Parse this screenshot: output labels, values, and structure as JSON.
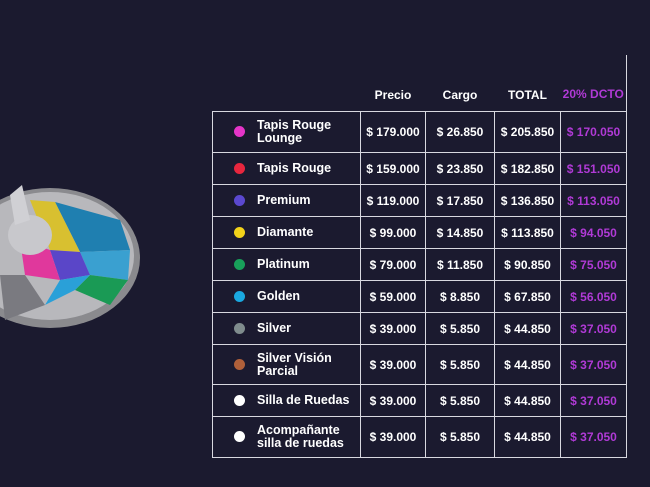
{
  "table": {
    "headers": [
      "Precio",
      "Cargo",
      "TOTAL",
      "20% DCTO"
    ],
    "rows": [
      {
        "dot": "#e535c8",
        "cells": [
          "Tapis Rouge Lounge",
          "$ 179.000",
          "$ 26.850",
          "$ 205.850",
          "$ 170.050"
        ]
      },
      {
        "dot": "#e8263e",
        "cells": [
          "Tapis Rouge",
          "$ 159.000",
          "$ 23.850",
          "$ 182.850",
          "$ 151.050"
        ]
      },
      {
        "dot": "#5b48d0",
        "cells": [
          "Premium",
          "$ 119.000",
          "$ 17.850",
          "$ 136.850",
          "$ 113.050"
        ]
      },
      {
        "dot": "#f2d21a",
        "cells": [
          "Diamante",
          "$ 99.000",
          "$ 14.850",
          "$ 113.850",
          "$ 94.050"
        ]
      },
      {
        "dot": "#18a05a",
        "cells": [
          "Platinum",
          "$ 79.000",
          "$ 11.850",
          "$ 90.850",
          "$ 75.050"
        ]
      },
      {
        "dot": "#1aa8e0",
        "cells": [
          "Golden",
          "$ 59.000",
          "$ 8.850",
          "$ 67.850",
          "$ 56.050"
        ]
      },
      {
        "dot": "#7f8c8d",
        "cells": [
          "Silver",
          "$ 39.000",
          "$ 5.850",
          "$ 44.850",
          "$ 37.050"
        ]
      },
      {
        "dot": "#b0603a",
        "cells": [
          "Silver Visión Parcial",
          "$ 39.000",
          "$ 5.850",
          "$ 44.850",
          "$ 37.050"
        ]
      },
      {
        "dot": "#ffffff",
        "cells": [
          "Silla de Ruedas",
          "$ 39.000",
          "$ 5.850",
          "$ 44.850",
          "$ 37.050"
        ]
      },
      {
        "dot": "#ffffff",
        "cells": [
          "Acompañante silla de ruedas",
          "$ 39.000",
          "$ 5.850",
          "$ 44.850",
          "$ 37.050"
        ]
      }
    ]
  }
}
